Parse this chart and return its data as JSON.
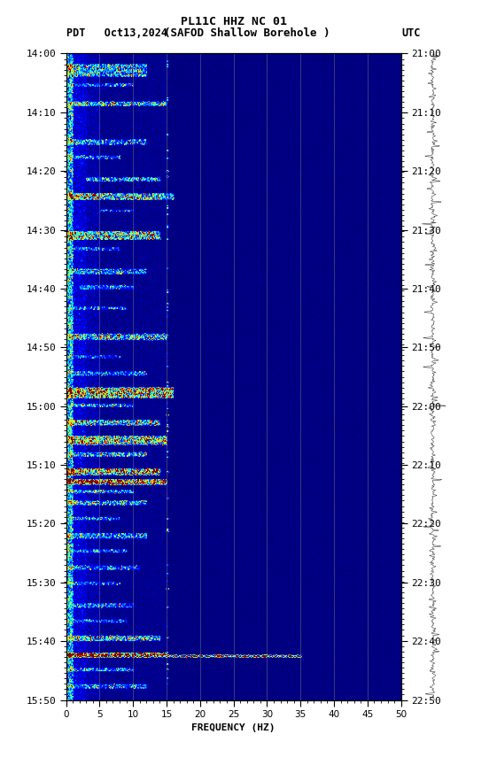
{
  "title_line1": "PL11C HHZ NC 01",
  "subtitle": "    (SAFOD Shallow Borehole )",
  "pdt_label": "PDT   Oct13,2024",
  "utc_label": "UTC",
  "xlabel": "FREQUENCY (HZ)",
  "left_times": [
    "14:00",
    "14:10",
    "14:20",
    "14:30",
    "14:40",
    "14:50",
    "15:00",
    "15:10",
    "15:20",
    "15:30",
    "15:40",
    "15:50"
  ],
  "right_times": [
    "21:00",
    "21:10",
    "21:20",
    "21:30",
    "21:40",
    "21:50",
    "22:00",
    "22:10",
    "22:20",
    "22:30",
    "22:40",
    "22:50"
  ],
  "freq_ticks": [
    0,
    5,
    10,
    15,
    20,
    25,
    30,
    35,
    40,
    45,
    50
  ],
  "freq_min": 0,
  "freq_max": 50,
  "n_time": 600,
  "n_freq": 500,
  "vline_freqs": [
    5,
    10,
    15,
    20,
    25,
    30,
    35,
    40,
    45
  ],
  "noise_seed": 42
}
